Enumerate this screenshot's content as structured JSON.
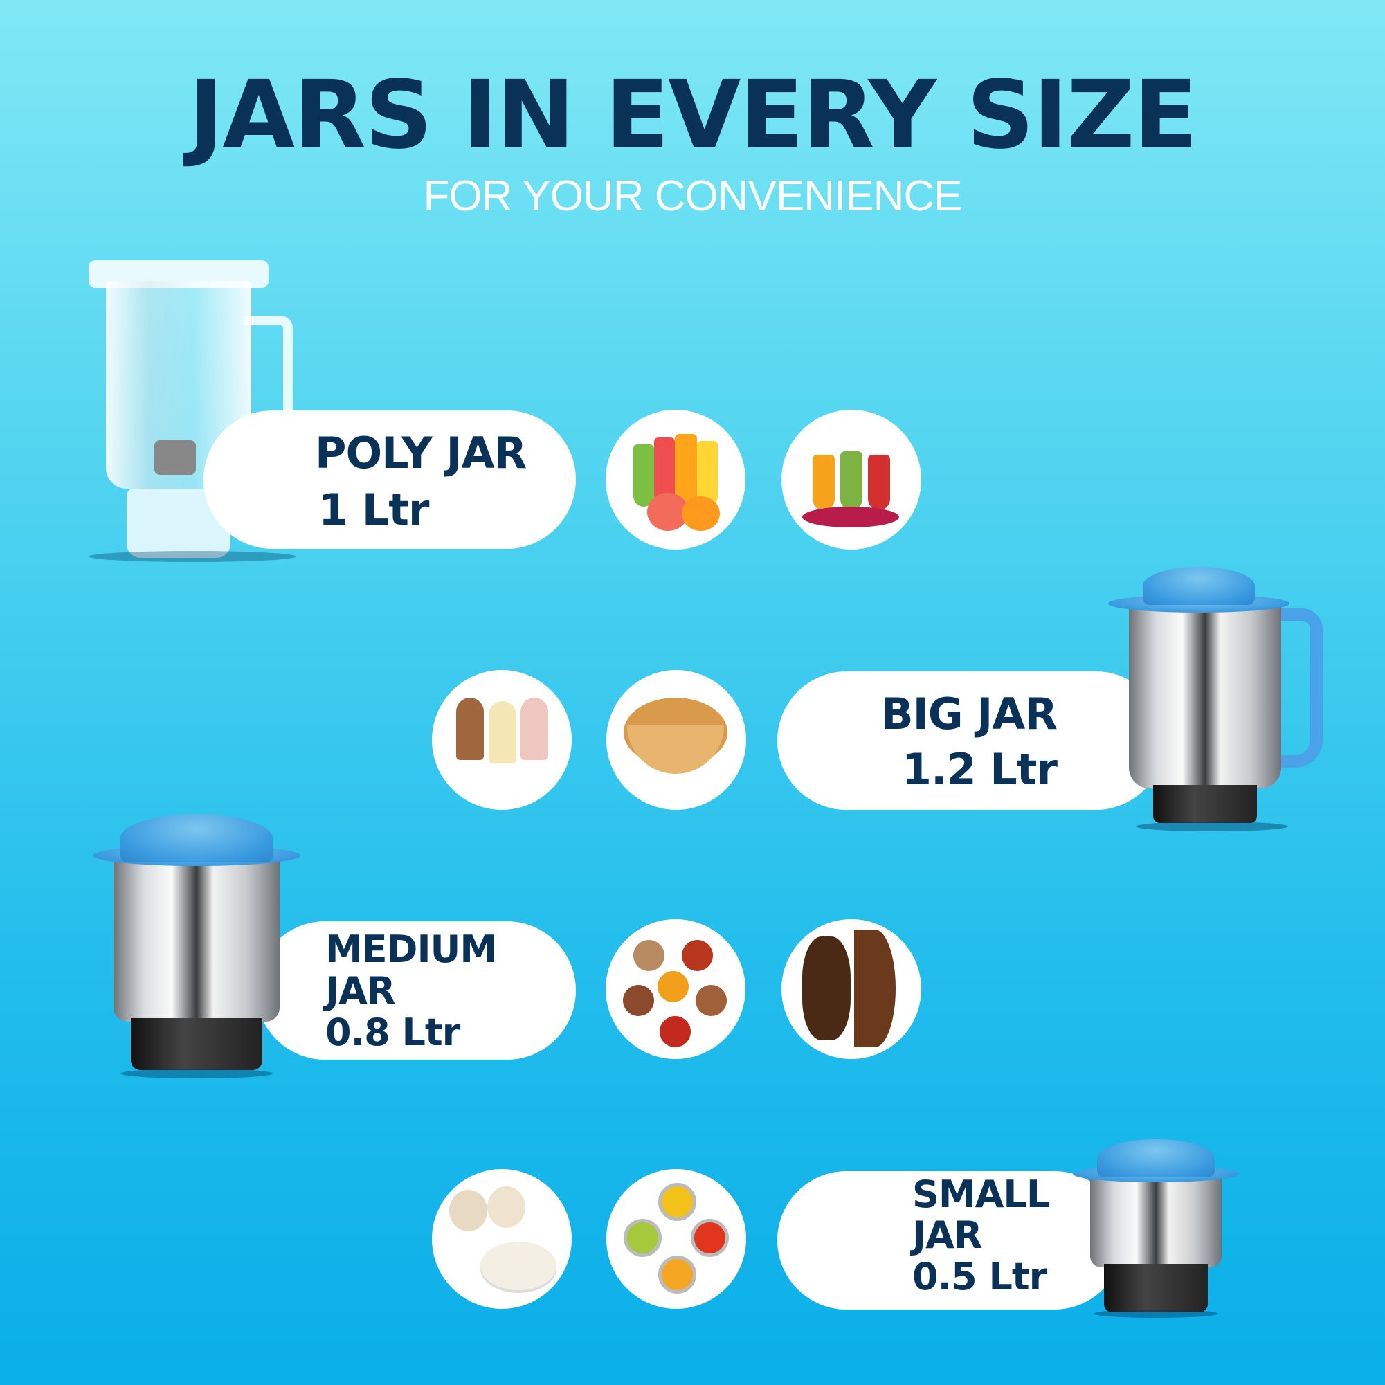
{
  "header": {
    "title": "JARS IN EVERY SIZE",
    "subtitle": "FOR YOUR CONVENIENCE"
  },
  "colors": {
    "title": "#0a3157",
    "background_top": "#80e8f5",
    "background_bottom": "#0aaee8",
    "lid": "#3b9be0"
  },
  "jars": [
    {
      "name": "POLY JAR",
      "capacity": "1 Ltr",
      "uses": [
        "juice-glasses",
        "smoothie-bottles"
      ]
    },
    {
      "name": "BIG JAR",
      "capacity": "1.2 Ltr",
      "uses": [
        "milkshakes",
        "nut-paste"
      ]
    },
    {
      "name": "MEDIUM JAR",
      "name_line1": "MEDIUM",
      "name_line2": "JAR",
      "capacity": "0.8 Ltr",
      "uses": [
        "spice-powders",
        "coffee-beans-ground"
      ]
    },
    {
      "name": "SMALL JAR",
      "name_line1": "SMALL",
      "name_line2": "JAR",
      "capacity": "0.5 Ltr",
      "uses": [
        "garlic-paste",
        "chutneys"
      ]
    }
  ]
}
